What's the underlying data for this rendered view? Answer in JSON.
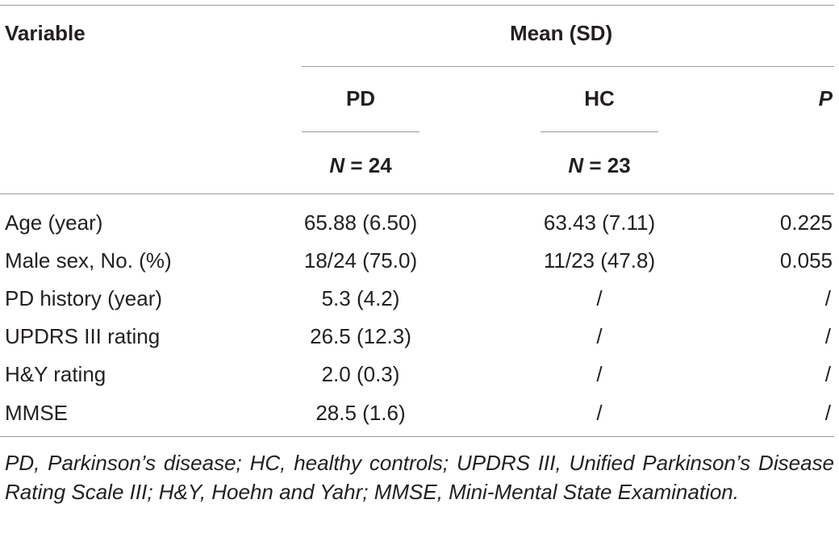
{
  "table": {
    "header": {
      "variable": "Variable",
      "group_heading": "Mean (SD)",
      "pd": "PD",
      "hc": "HC",
      "p": "P",
      "pd_n_letter": "N",
      "pd_n_value": " = 24",
      "hc_n_letter": "N",
      "hc_n_value": " = 23"
    },
    "rows": [
      {
        "label": "Age (year)",
        "pd": "65.88 (6.50)",
        "hc": "63.43 (7.11)",
        "p": "0.225"
      },
      {
        "label": "Male sex, No. (%)",
        "pd": "18/24 (75.0)",
        "hc": "11/23 (47.8)",
        "p": "0.055"
      },
      {
        "label": "PD history (year)",
        "pd": "5.3 (4.2)",
        "hc": "/",
        "p": "/"
      },
      {
        "label": "UPDRS III rating",
        "pd": "26.5 (12.3)",
        "hc": "/",
        "p": "/"
      },
      {
        "label": "H&Y rating",
        "pd": "2.0 (0.3)",
        "hc": "/",
        "p": "/"
      },
      {
        "label": "MMSE",
        "pd": "28.5 (1.6)",
        "hc": "/",
        "p": "/"
      }
    ],
    "footnote": "PD, Parkinson’s disease; HC, healthy controls; UPDRS III, Unified Parkinson’s Disease Rating Scale III; H&Y, Hoehn and Yahr; MMSE, Mini-Mental State Examination."
  }
}
